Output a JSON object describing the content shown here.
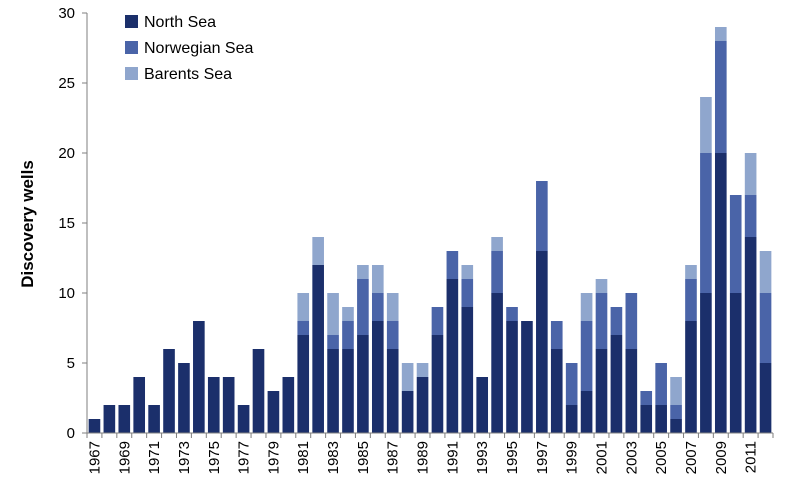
{
  "chart_data": {
    "type": "bar",
    "stacked": true,
    "title": "",
    "xlabel": "",
    "ylabel": "Discovery wells",
    "ylim": [
      0,
      30
    ],
    "yticks": [
      0,
      5,
      10,
      15,
      20,
      25,
      30
    ],
    "grid": false,
    "legend_position": "top-left",
    "categories": [
      "1967",
      "1968",
      "1969",
      "1970",
      "1971",
      "1972",
      "1973",
      "1974",
      "1975",
      "1976",
      "1977",
      "1978",
      "1979",
      "1980",
      "1981",
      "1982",
      "1983",
      "1984",
      "1985",
      "1986",
      "1987",
      "1988",
      "1989",
      "1990",
      "1991",
      "1992",
      "1993",
      "1994",
      "1995",
      "1996",
      "1997",
      "1998",
      "1999",
      "2000",
      "2001",
      "2002",
      "2003",
      "2004",
      "2005",
      "2006",
      "2007",
      "2008",
      "2009",
      "2010",
      "2011",
      "2012"
    ],
    "x_tick_labels": [
      "1967",
      "1969",
      "1971",
      "1973",
      "1975",
      "1977",
      "1979",
      "1981",
      "1983",
      "1985",
      "1987",
      "1989",
      "1991",
      "1993",
      "1995",
      "1997",
      "1999",
      "2001",
      "2003",
      "2005",
      "2007",
      "2009",
      "2011"
    ],
    "series": [
      {
        "name": "North Sea",
        "color": "#1b2f6b",
        "values": [
          1,
          2,
          2,
          4,
          2,
          6,
          5,
          8,
          4,
          4,
          2,
          6,
          3,
          4,
          7,
          12,
          6,
          6,
          7,
          8,
          6,
          3,
          4,
          7,
          11,
          9,
          4,
          10,
          8,
          8,
          13,
          6,
          2,
          3,
          6,
          7,
          6,
          2,
          2,
          1,
          8,
          10,
          20,
          10,
          14,
          5
        ]
      },
      {
        "name": "Norwegian Sea",
        "color": "#4a64a8",
        "values": [
          0,
          0,
          0,
          0,
          0,
          0,
          0,
          0,
          0,
          0,
          0,
          0,
          0,
          0,
          1,
          0,
          1,
          2,
          4,
          2,
          2,
          0,
          0,
          2,
          2,
          2,
          0,
          3,
          1,
          0,
          5,
          2,
          3,
          5,
          4,
          2,
          4,
          1,
          3,
          1,
          3,
          10,
          8,
          7,
          3,
          5
        ]
      },
      {
        "name": "Barents Sea",
        "color": "#8fa6cd",
        "values": [
          0,
          0,
          0,
          0,
          0,
          0,
          0,
          0,
          0,
          0,
          0,
          0,
          0,
          0,
          2,
          2,
          3,
          1,
          1,
          2,
          2,
          2,
          1,
          0,
          0,
          1,
          0,
          1,
          0,
          0,
          0,
          0,
          0,
          2,
          1,
          0,
          0,
          0,
          0,
          2,
          1,
          4,
          1,
          0,
          3,
          3
        ]
      }
    ]
  }
}
